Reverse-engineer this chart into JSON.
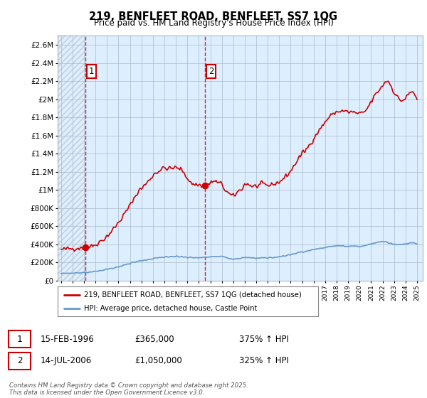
{
  "title": "219, BENFLEET ROAD, BENFLEET, SS7 1QG",
  "subtitle": "Price paid vs. HM Land Registry's House Price Index (HPI)",
  "ylim": [
    0,
    2700000
  ],
  "yticks": [
    0,
    200000,
    400000,
    600000,
    800000,
    1000000,
    1200000,
    1400000,
    1600000,
    1800000,
    2000000,
    2200000,
    2400000,
    2600000
  ],
  "ytick_labels": [
    "£0",
    "£200K",
    "£400K",
    "£600K",
    "£800K",
    "£1M",
    "£1.2M",
    "£1.4M",
    "£1.6M",
    "£1.8M",
    "£2M",
    "£2.2M",
    "£2.4M",
    "£2.6M"
  ],
  "red_line_color": "#cc0000",
  "blue_line_color": "#6699cc",
  "grid_color": "#aabbcc",
  "background_color": "#ddeeff",
  "marker1_x": 1996.12,
  "marker1_y": 365000,
  "marker2_x": 2006.54,
  "marker2_y": 1050000,
  "legend_label_red": "219, BENFLEET ROAD, BENFLEET, SS7 1QG (detached house)",
  "legend_label_blue": "HPI: Average price, detached house, Castle Point",
  "table_row1": [
    "1",
    "15-FEB-1996",
    "£365,000",
    "375% ↑ HPI"
  ],
  "table_row2": [
    "2",
    "14-JUL-2006",
    "£1,050,000",
    "325% ↑ HPI"
  ],
  "footer": "Contains HM Land Registry data © Crown copyright and database right 2025.\nThis data is licensed under the Open Government Licence v3.0.",
  "xlim_left": 1993.7,
  "xlim_right": 2025.5
}
